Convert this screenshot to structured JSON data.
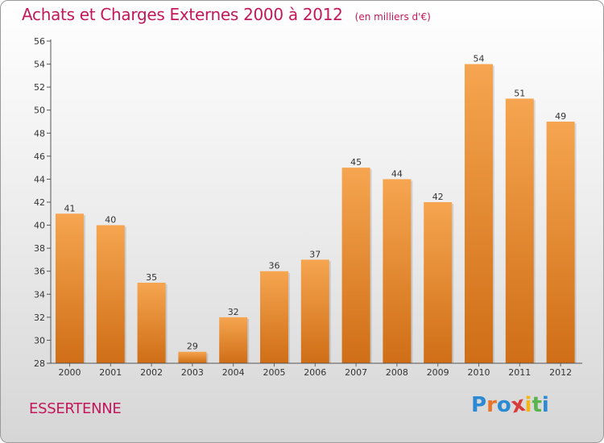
{
  "header": {
    "title": "Achats et Charges Externes 2000 à 2012",
    "unit": "(en milliers d'€)"
  },
  "footer": {
    "commune": "ESSERTENNE",
    "brand_letters": [
      "P",
      "r",
      "o",
      "x",
      "i",
      "t",
      "i"
    ],
    "brand_colors": [
      "#2b8ad3",
      "#e8752a",
      "#2b8ad3",
      "#d93a3a",
      "#f2b618",
      "#5ab34c",
      "#2b8ad3"
    ]
  },
  "colors": {
    "bar_light": "#f6a550",
    "bar_dark": "#cf6e16",
    "accent": "#c2185b"
  },
  "chart_data": {
    "type": "bar",
    "title": "Achats et Charges Externes 2000 à 2012",
    "categories": [
      "2000",
      "2001",
      "2002",
      "2003",
      "2004",
      "2005",
      "2006",
      "2007",
      "2008",
      "2009",
      "2010",
      "2011",
      "2012"
    ],
    "values": [
      41,
      40,
      35,
      29,
      32,
      36,
      37,
      45,
      44,
      42,
      54,
      51,
      49
    ],
    "ylim": [
      28,
      56
    ],
    "yticks": [
      28,
      30,
      32,
      34,
      36,
      38,
      40,
      42,
      44,
      46,
      48,
      50,
      52,
      54,
      56
    ],
    "grid": false,
    "data_labels": true
  }
}
